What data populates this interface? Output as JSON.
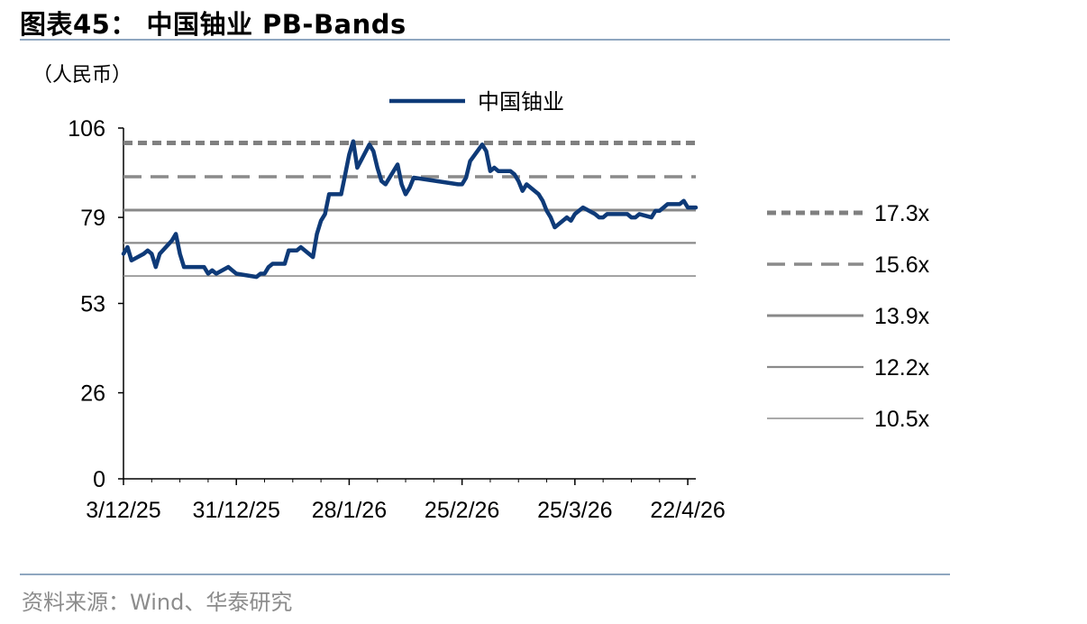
{
  "header": {
    "title": "图表45： 中国铀业 PB-Bands"
  },
  "footer": {
    "source": "资料来源：Wind、华泰研究"
  },
  "colors": {
    "series": "#0e3a78",
    "band_dark": "#808080",
    "band_mid": "#8a8a8a",
    "rule": "#8fa7c0"
  },
  "chart_data": {
    "type": "line",
    "unit_label": "（人民币）",
    "y_ticks": [
      0,
      26,
      53,
      79,
      106
    ],
    "ylim": [
      0,
      106
    ],
    "x_tick_labels": [
      "3/12/25",
      "31/12/25",
      "28/1/26",
      "25/2/26",
      "25/3/26",
      "22/4/26"
    ],
    "x_tick_dates": [
      "2025-12-03",
      "2025-12-31",
      "2026-01-28",
      "2026-02-25",
      "2026-03-25",
      "2026-04-22"
    ],
    "xlim": [
      "2025-12-03",
      "2026-04-24"
    ],
    "legend_position": "right",
    "series": [
      {
        "name": "中国铀业",
        "x": [
          "2025-12-03",
          "2025-12-04",
          "2025-12-05",
          "2025-12-08",
          "2025-12-09",
          "2025-12-10",
          "2025-12-11",
          "2025-12-12",
          "2025-12-15",
          "2025-12-16",
          "2025-12-17",
          "2025-12-18",
          "2025-12-19",
          "2025-12-22",
          "2025-12-23",
          "2025-12-24",
          "2025-12-25",
          "2025-12-26",
          "2025-12-29",
          "2025-12-30",
          "2025-12-31",
          "2026-01-05",
          "2026-01-06",
          "2026-01-07",
          "2026-01-08",
          "2026-01-09",
          "2026-01-12",
          "2026-01-13",
          "2026-01-14",
          "2026-01-15",
          "2026-01-16",
          "2026-01-19",
          "2026-01-20",
          "2026-01-21",
          "2026-01-22",
          "2026-01-23",
          "2026-01-26",
          "2026-01-27",
          "2026-01-28",
          "2026-01-29",
          "2026-01-30",
          "2026-02-02",
          "2026-02-03",
          "2026-02-04",
          "2026-02-05",
          "2026-02-06",
          "2026-02-09",
          "2026-02-10",
          "2026-02-11",
          "2026-02-12",
          "2026-02-13",
          "2026-02-24",
          "2026-02-25",
          "2026-02-26",
          "2026-02-27",
          "2026-03-02",
          "2026-03-03",
          "2026-03-04",
          "2026-03-05",
          "2026-03-06",
          "2026-03-09",
          "2026-03-10",
          "2026-03-11",
          "2026-03-12",
          "2026-03-13",
          "2026-03-16",
          "2026-03-17",
          "2026-03-18",
          "2026-03-19",
          "2026-03-20",
          "2026-03-23",
          "2026-03-24",
          "2026-03-25",
          "2026-03-26",
          "2026-03-27",
          "2026-03-30",
          "2026-03-31",
          "2026-04-01",
          "2026-04-02",
          "2026-04-03",
          "2026-04-07",
          "2026-04-08",
          "2026-04-09",
          "2026-04-10",
          "2026-04-13",
          "2026-04-14",
          "2026-04-15",
          "2026-04-16",
          "2026-04-17",
          "2026-04-20",
          "2026-04-21",
          "2026-04-22",
          "2026-04-23",
          "2026-04-24"
        ],
        "values": [
          68,
          70,
          66,
          68,
          69,
          68,
          64,
          68,
          72,
          74,
          68,
          64,
          64,
          64,
          64,
          62,
          63,
          62,
          64,
          63,
          62,
          61,
          62,
          62,
          64,
          65,
          65,
          69,
          69,
          69,
          70,
          67,
          74,
          78,
          80,
          86,
          86,
          92,
          98,
          102,
          94,
          101,
          99,
          94,
          90,
          89,
          95,
          89,
          86,
          88,
          91,
          89,
          89,
          91,
          96,
          101,
          99,
          93,
          94,
          93,
          93,
          92,
          90,
          87,
          89,
          86,
          84,
          81,
          79,
          76,
          79,
          78,
          80,
          81,
          82,
          80,
          79,
          79,
          80,
          80,
          80,
          79,
          79,
          80,
          79,
          81,
          81,
          82,
          83,
          83,
          84,
          82,
          82,
          82
        ]
      }
    ],
    "bands": [
      {
        "label": "17.3x",
        "style": "dotted-heavy",
        "values": [
          101.5,
          101.5
        ]
      },
      {
        "label": "15.6x",
        "style": "dashed",
        "values": [
          91.3,
          91.3
        ]
      },
      {
        "label": "13.9x",
        "style": "solid-thick",
        "values": [
          81.2,
          81.2
        ]
      },
      {
        "label": "12.2x",
        "style": "solid-mid",
        "values": [
          71.3,
          71.3
        ]
      },
      {
        "label": "10.5x",
        "style": "solid-thin",
        "values": [
          61.3,
          61.3
        ]
      }
    ]
  }
}
